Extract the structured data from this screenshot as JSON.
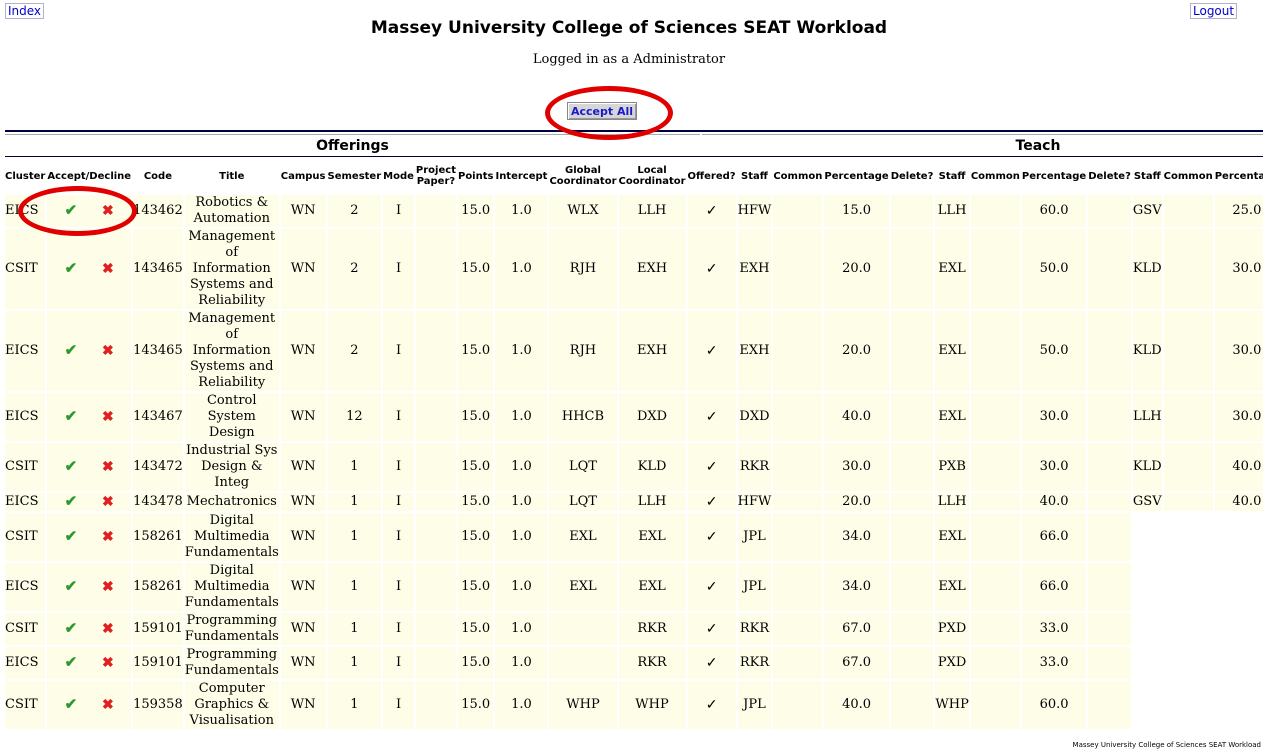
{
  "nav": {
    "index": "Index",
    "logout": "Logout"
  },
  "page": {
    "title": "Massey University College of Sciences SEAT Workload",
    "login_status": "Logged in as a Administrator",
    "accept_all": "Accept All",
    "footer": "Massey University College of Sciences SEAT Workload"
  },
  "groups": {
    "offerings": "Offerings",
    "teach": "Teach"
  },
  "columns": [
    "Cluster",
    "Accept/Decline",
    "Code",
    "Title",
    "Campus",
    "Semester",
    "Mode",
    "Project Paper?",
    "Points",
    "Intercept",
    "Global Coordinator",
    "Local Coordinator",
    "Offered?",
    "Staff",
    "Common",
    "Percentage",
    "Delete?",
    "Staff",
    "Common",
    "Percentage",
    "Delete?",
    "Staff",
    "Common",
    "Percentage",
    "Delete?",
    "Staff",
    "Comm"
  ],
  "icons": {
    "accept": "checkmark-icon",
    "decline": "cross-icon",
    "offered": "checkmark-icon"
  },
  "colors": {
    "accept": "#2e9a2e",
    "decline": "#e02020",
    "row_bg": "#fdfde8",
    "annotation": "#e00000",
    "link": "#0000cc"
  },
  "rows": [
    {
      "cluster": "EICS",
      "code": "143462",
      "title": "Robotics & Automation",
      "campus": "WN",
      "semester": "2",
      "mode": "I",
      "points": "15.0",
      "intercept": "1.0",
      "global": "WLX",
      "local": "LLH",
      "teach": [
        [
          "HFW",
          "15.0"
        ],
        [
          "LLH",
          "60.0"
        ],
        [
          "GSV",
          "25.0"
        ]
      ]
    },
    {
      "cluster": "CSIT",
      "code": "143465",
      "title": "Management of Information Systems and Reliability",
      "campus": "WN",
      "semester": "2",
      "mode": "I",
      "points": "15.0",
      "intercept": "1.0",
      "global": "RJH",
      "local": "EXH",
      "teach": [
        [
          "EXH",
          "20.0"
        ],
        [
          "EXL",
          "50.0"
        ],
        [
          "KLD",
          "30.0"
        ]
      ]
    },
    {
      "cluster": "EICS",
      "code": "143465",
      "title": "Management of Information Systems and Reliability",
      "campus": "WN",
      "semester": "2",
      "mode": "I",
      "points": "15.0",
      "intercept": "1.0",
      "global": "RJH",
      "local": "EXH",
      "teach": [
        [
          "EXH",
          "20.0"
        ],
        [
          "EXL",
          "50.0"
        ],
        [
          "KLD",
          "30.0"
        ]
      ]
    },
    {
      "cluster": "EICS",
      "code": "143467",
      "title": "Control System Design",
      "campus": "WN",
      "semester": "12",
      "mode": "I",
      "points": "15.0",
      "intercept": "1.0",
      "global": "HHCB",
      "local": "DXD",
      "teach": [
        [
          "DXD",
          "40.0"
        ],
        [
          "EXL",
          "30.0"
        ],
        [
          "LLH",
          "30.0"
        ]
      ]
    },
    {
      "cluster": "CSIT",
      "code": "143472",
      "title": "Industrial Sys Design & Integ",
      "campus": "WN",
      "semester": "1",
      "mode": "I",
      "points": "15.0",
      "intercept": "1.0",
      "global": "LQT",
      "local": "KLD",
      "teach": [
        [
          "RKR",
          "30.0"
        ],
        [
          "PXB",
          "30.0"
        ],
        [
          "KLD",
          "40.0"
        ]
      ]
    },
    {
      "cluster": "EICS",
      "code": "143478",
      "title": "Mechatronics",
      "campus": "WN",
      "semester": "1",
      "mode": "I",
      "points": "15.0",
      "intercept": "1.0",
      "global": "LQT",
      "local": "LLH",
      "teach": [
        [
          "HFW",
          "20.0"
        ],
        [
          "LLH",
          "40.0"
        ],
        [
          "GSV",
          "40.0"
        ]
      ]
    },
    {
      "cluster": "CSIT",
      "code": "158261",
      "title": "Digital Multimedia Fundamentals",
      "campus": "WN",
      "semester": "1",
      "mode": "I",
      "points": "15.0",
      "intercept": "1.0",
      "global": "EXL",
      "local": "EXL",
      "teach": [
        [
          "JPL",
          "34.0"
        ],
        [
          "EXL",
          "66.0"
        ]
      ]
    },
    {
      "cluster": "EICS",
      "code": "158261",
      "title": "Digital Multimedia Fundamentals",
      "campus": "WN",
      "semester": "1",
      "mode": "I",
      "points": "15.0",
      "intercept": "1.0",
      "global": "EXL",
      "local": "EXL",
      "teach": [
        [
          "JPL",
          "34.0"
        ],
        [
          "EXL",
          "66.0"
        ]
      ]
    },
    {
      "cluster": "CSIT",
      "code": "159101",
      "title": "Programming Fundamentals",
      "campus": "WN",
      "semester": "1",
      "mode": "I",
      "points": "15.0",
      "intercept": "1.0",
      "global": "",
      "local": "RKR",
      "teach": [
        [
          "RKR",
          "67.0"
        ],
        [
          "PXD",
          "33.0"
        ]
      ]
    },
    {
      "cluster": "EICS",
      "code": "159101",
      "title": "Programming Fundamentals",
      "campus": "WN",
      "semester": "1",
      "mode": "I",
      "points": "15.0",
      "intercept": "1.0",
      "global": "",
      "local": "RKR",
      "teach": [
        [
          "RKR",
          "67.0"
        ],
        [
          "PXD",
          "33.0"
        ]
      ]
    },
    {
      "cluster": "CSIT",
      "code": "159358",
      "title": "Computer Graphics & Visualisation",
      "campus": "WN",
      "semester": "1",
      "mode": "I",
      "points": "15.0",
      "intercept": "1.0",
      "global": "WHP",
      "local": "WHP",
      "teach": [
        [
          "JPL",
          "40.0"
        ],
        [
          "WHP",
          "60.0"
        ]
      ]
    }
  ]
}
